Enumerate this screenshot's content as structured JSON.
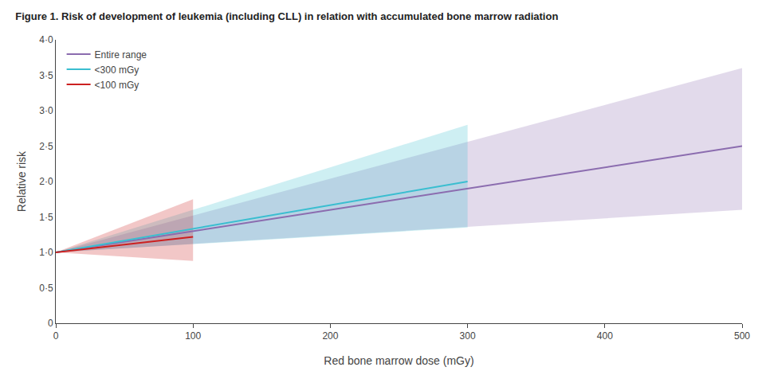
{
  "chart_data": {
    "type": "line",
    "title": "Figure 1. Risk of development of leukemia (including CLL) in relation with accumulated bone marrow radiation",
    "xlabel": "Red bone marrow dose (mGy)",
    "ylabel": "Relative risk",
    "xlim": [
      0,
      500
    ],
    "ylim": [
      0,
      4.0
    ],
    "xticks": [
      0,
      100,
      200,
      300,
      400,
      500
    ],
    "yticks": [
      0,
      {
        "value": 0.5,
        "label": "0·5"
      },
      {
        "value": 1.0,
        "label": "1·0"
      },
      {
        "value": 1.5,
        "label": "1·5"
      },
      {
        "value": 2.0,
        "label": "2·0"
      },
      {
        "value": 2.5,
        "label": "2·5"
      },
      {
        "value": 3.0,
        "label": "3·0"
      },
      {
        "value": 3.5,
        "label": "3·5"
      },
      {
        "value": 4.0,
        "label": "4·0"
      }
    ],
    "grid": false,
    "legend": "upper left",
    "series": [
      {
        "name": "Entire range",
        "color": "#8B6CAF",
        "x": [
          0,
          500
        ],
        "values": [
          1.0,
          2.5
        ],
        "ci_upper": [
          1.0,
          3.6
        ],
        "ci_lower": [
          1.0,
          1.6
        ]
      },
      {
        "name": "<300 mGy",
        "color": "#3ABED0",
        "x": [
          0,
          300
        ],
        "values": [
          1.0,
          2.0
        ],
        "ci_upper": [
          1.0,
          2.8
        ],
        "ci_lower": [
          1.0,
          1.35
        ]
      },
      {
        "name": "<100 mGy",
        "color": "#CC2020",
        "x": [
          0,
          100
        ],
        "values": [
          1.0,
          1.22
        ],
        "ci_upper": [
          1.0,
          1.75
        ],
        "ci_lower": [
          1.0,
          0.88
        ]
      }
    ]
  }
}
